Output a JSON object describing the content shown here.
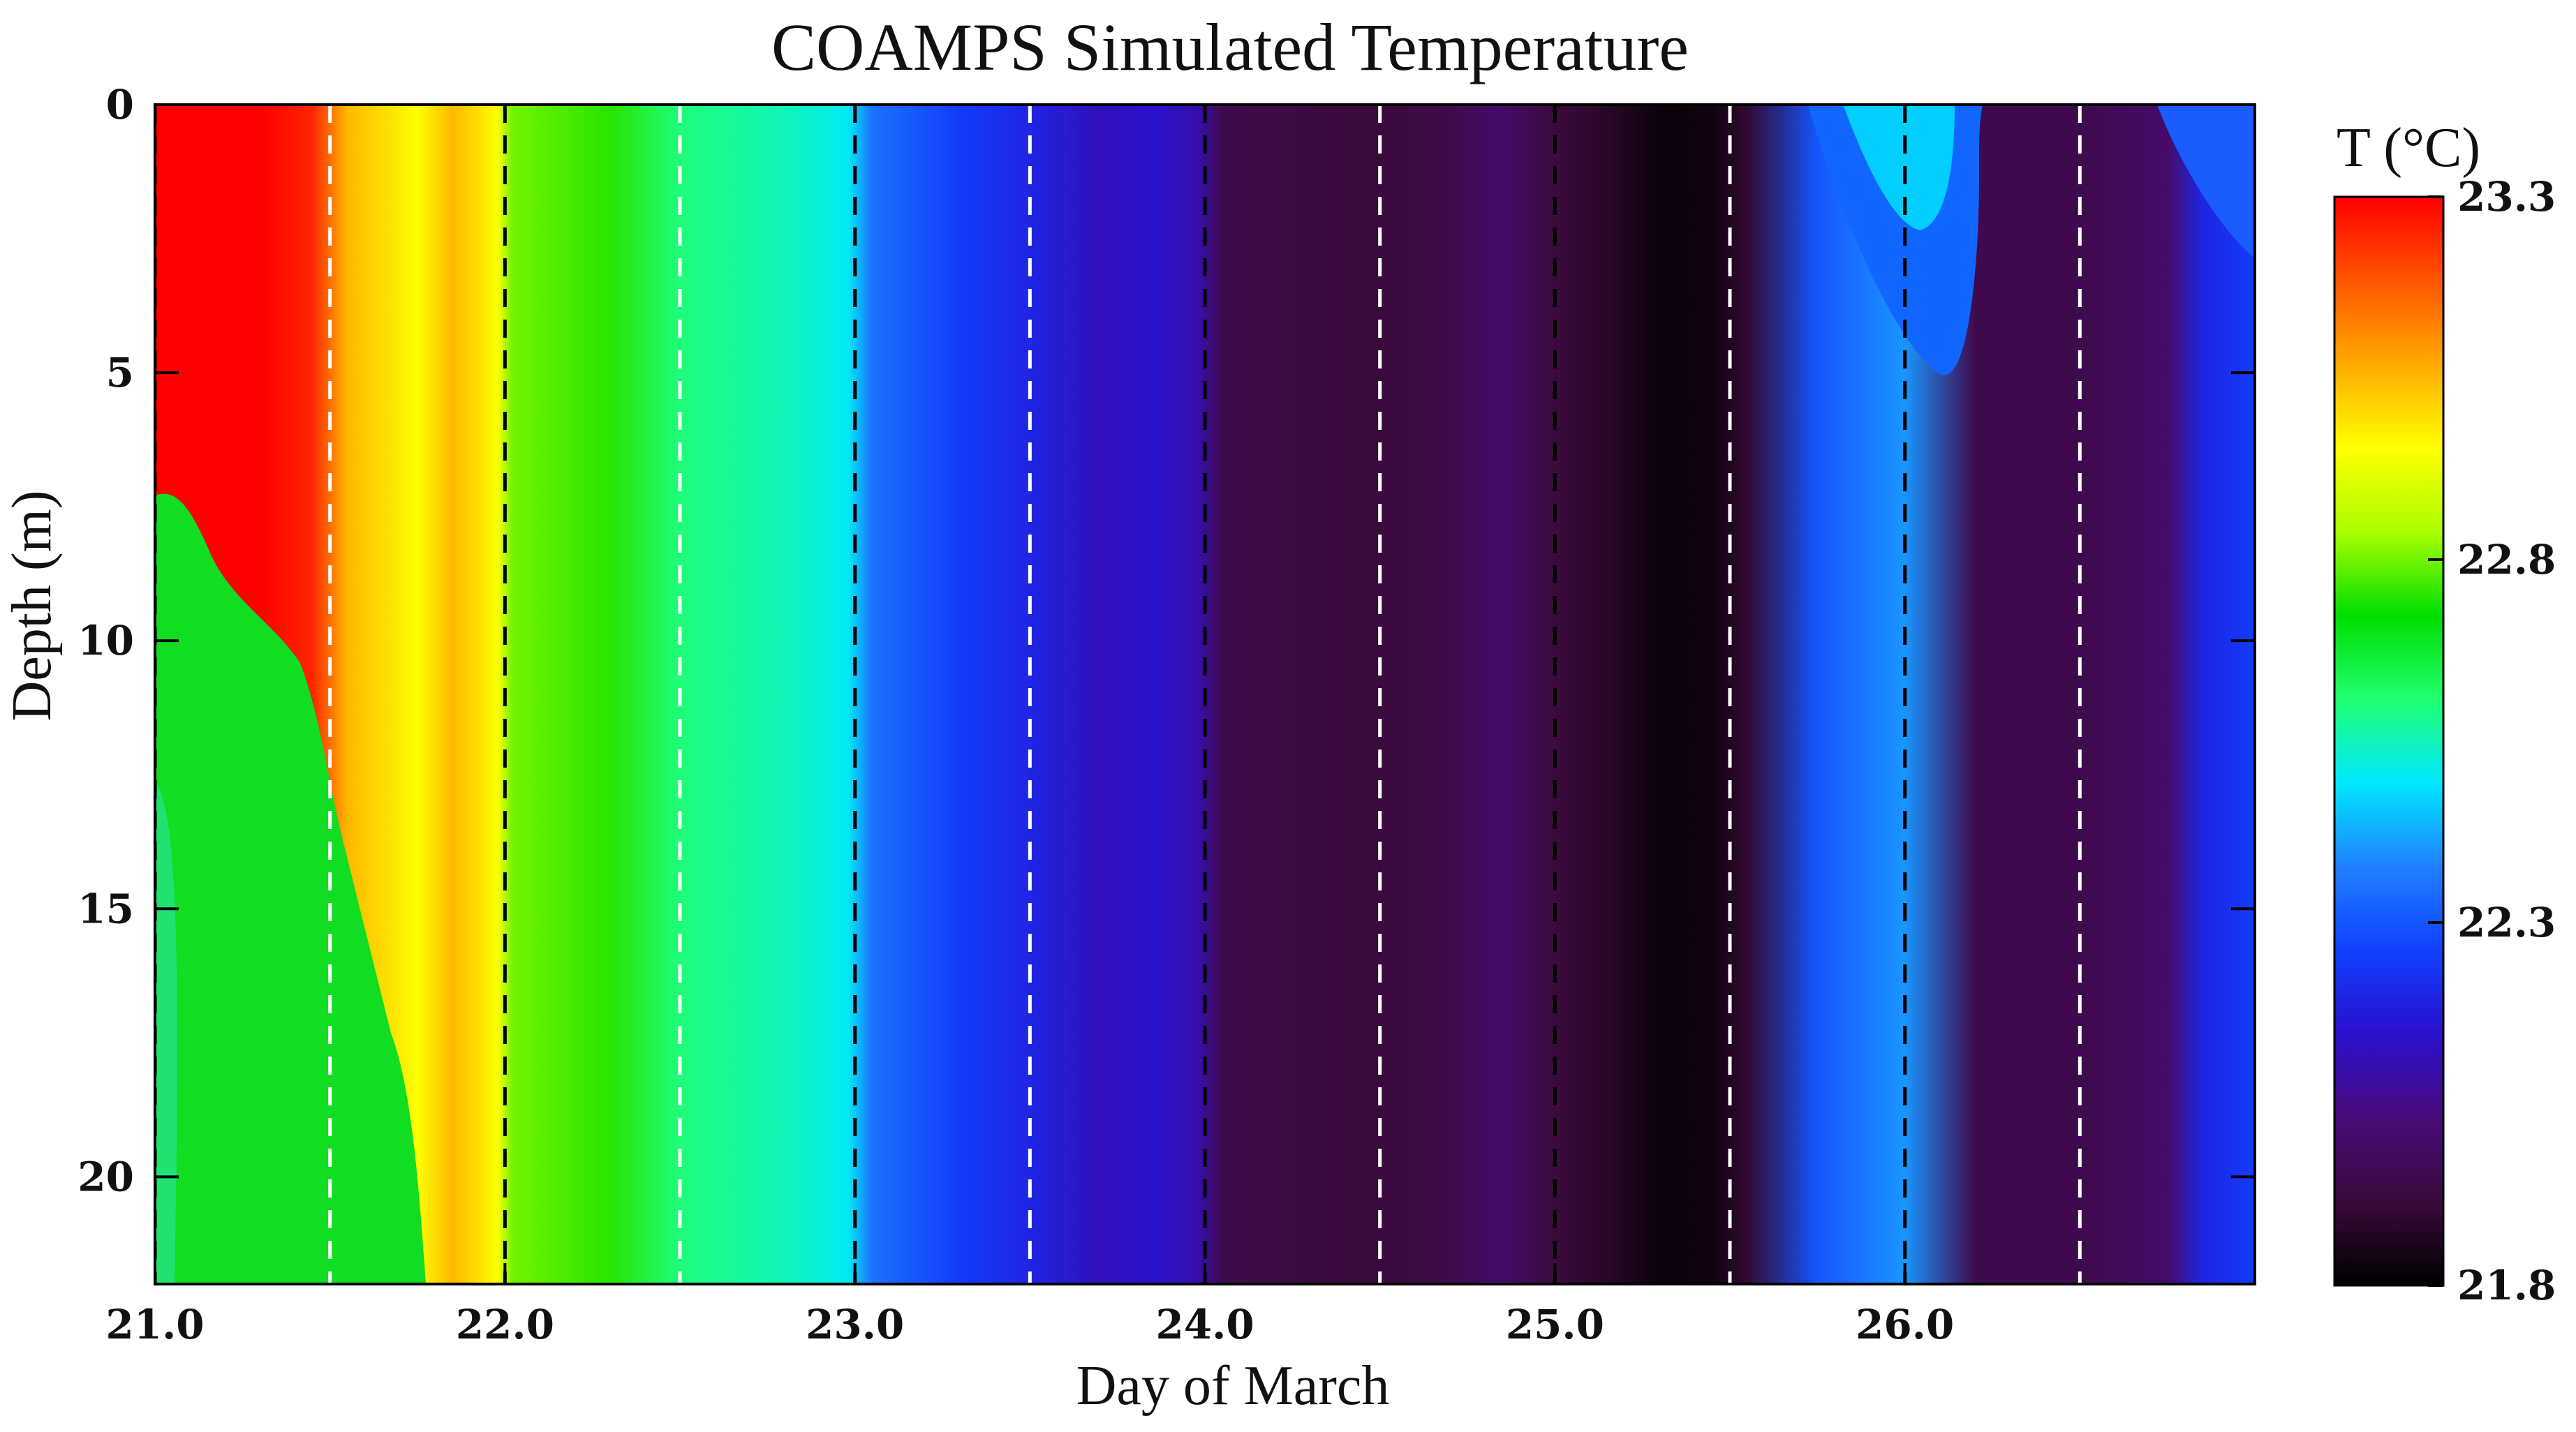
{
  "chart_data": {
    "type": "heatmap",
    "title": "COAMPS Simulated Temperature",
    "xlabel": "Day of March",
    "ylabel": "Depth (m)",
    "xlim": [
      21.0,
      27.0
    ],
    "ylim": [
      0,
      22
    ],
    "x_tick_values": [
      21.0,
      22.0,
      23.0,
      24.0,
      25.0,
      26.0
    ],
    "x_tick_labels": [
      "21.0",
      "22.0",
      "23.0",
      "24.0",
      "25.0",
      "26.0"
    ],
    "y_tick_values": [
      0,
      5,
      10,
      15,
      20
    ],
    "y_tick_labels": [
      "0",
      "5",
      "10",
      "15",
      "20"
    ],
    "colorbar": {
      "label": "T (°C)",
      "range": [
        21.8,
        23.3
      ],
      "tick_values": [
        23.3,
        22.8,
        22.3,
        21.8
      ],
      "tick_labels": [
        "23.3",
        "22.8",
        "22.3",
        "21.8"
      ],
      "colormap": [
        "#000000",
        "#3a0a3a",
        "#4a0a7a",
        "#2a10cc",
        "#1040ff",
        "#2080ff",
        "#00e8ff",
        "#20ff70",
        "#00dd00",
        "#aaff00",
        "#ffff00",
        "#ffaa00",
        "#ff5500",
        "#ff0000"
      ]
    },
    "day_lines": {
      "black_dashed": [
        21.0,
        22.0,
        23.0,
        24.0,
        25.0,
        26.0
      ],
      "white_dashed": [
        21.5,
        22.5,
        23.5,
        24.5,
        25.5,
        26.5
      ]
    },
    "surface_temperature_profile": {
      "day": [
        21.0,
        21.3,
        21.45,
        21.55,
        21.75,
        21.85,
        21.98,
        22.02,
        22.3,
        22.5,
        22.8,
        22.98,
        23.05,
        23.3,
        23.5,
        23.7,
        23.85,
        23.98,
        24.05,
        24.3,
        24.5,
        24.7,
        24.85,
        25.0,
        25.15,
        25.3,
        25.45,
        25.55,
        25.75,
        26.0,
        26.2,
        26.5,
        26.75,
        26.85,
        27.0
      ],
      "T": [
        23.3,
        23.3,
        23.25,
        23.05,
        22.95,
        23.05,
        22.95,
        22.8,
        22.75,
        22.6,
        22.55,
        22.5,
        22.35,
        22.25,
        22.2,
        22.12,
        22.15,
        22.1,
        21.95,
        21.93,
        21.92,
        21.95,
        22.0,
        21.92,
        21.88,
        21.82,
        21.83,
        21.9,
        22.3,
        22.4,
        21.95,
        21.95,
        22.0,
        22.2,
        22.25
      ]
    },
    "annotations": [
      "warm mixed layer (~23.3 °C) down to ~8 m on 21.0–21.3, cooler (~22.7 °C) water below",
      "near-surface cool intrusion (~22.3–22.4 °C) 25.7–26.2 extending to ~5 m depth"
    ]
  }
}
